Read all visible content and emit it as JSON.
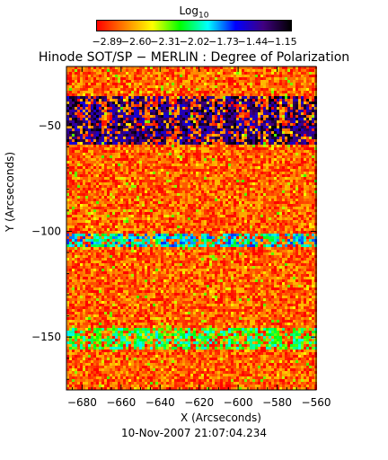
{
  "chart_data": {
    "type": "heatmap",
    "title": "Hinode SOT/SP − MERLIN : Degree of Polarization",
    "xlabel": "X (Arcseconds)",
    "ylabel": "Y (Arcseconds)",
    "timestamp": "10-Nov-2007 21:07:04.234",
    "xlim": [
      -688,
      -560
    ],
    "ylim": [
      -175,
      -22
    ],
    "xticks": [
      -680,
      -660,
      -640,
      -620,
      -600,
      -580,
      -560
    ],
    "xtick_labels": [
      "−680",
      "−660",
      "−640",
      "−620",
      "−600",
      "−580",
      "−560"
    ],
    "yticks": [
      -150,
      -100,
      -50
    ],
    "ytick_labels": [
      "−150",
      "−100",
      "−50"
    ],
    "colorbar": {
      "label": "Log",
      "label_subscript": "10",
      "range": [
        -3.0,
        -1.05
      ],
      "tick_values": [
        -2.89,
        -2.6,
        -2.31,
        -2.02,
        -1.73,
        -1.44,
        -1.15
      ],
      "tick_labels": [
        "−2.89",
        "−2.60",
        "−2.31",
        "−2.02",
        "−1.73",
        "−1.44",
        "−1.15"
      ],
      "colormap": [
        "#ff0000",
        "#ff8000",
        "#ffff00",
        "#00ff00",
        "#00ffff",
        "#0000ff",
        "#400080",
        "#000000"
      ]
    },
    "bands": [
      {
        "y_range": [
          -58,
          -36
        ],
        "level": "high",
        "description_value": -1.3
      },
      {
        "y_range": [
          -107,
          -100
        ],
        "level": "medium",
        "description_value": -1.9
      },
      {
        "y_range": [
          -155,
          -145
        ],
        "level": "medium-low",
        "description_value": -2.1
      }
    ],
    "background_level": -2.8
  }
}
